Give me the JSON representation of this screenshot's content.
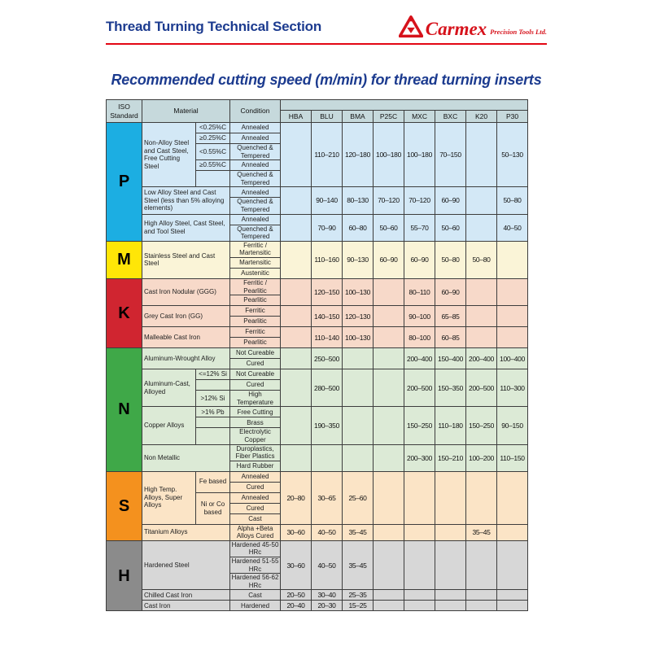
{
  "header": {
    "title": "Thread Turning Technical Section",
    "brand": "Carmex",
    "brand_suffix": "Precision Tools Ltd.",
    "logo_icon": "carmex-triangle-logo"
  },
  "doc_title": "Recommended cutting speed (m/min) for thread turning inserts",
  "colors": {
    "navy": "#1c3b8f",
    "red": "#e30613",
    "table_border": "#3d3d3d",
    "table_header_bg": "#c6d9dc"
  },
  "table": {
    "corner_headers": {
      "iso": "ISO Standard",
      "material": "Material",
      "condition": "Condition"
    },
    "grades": [
      "HBA",
      "BLU",
      "BMA",
      "P25C",
      "MXC",
      "BXC",
      "K20",
      "P30"
    ],
    "sections": [
      {
        "iso": "P",
        "label_bg": "#1caee2",
        "row_bg": "#d3e8f6",
        "materials": [
          {
            "name": "Non-Alloy Steel and Cast Steel, Free Cutting Steel",
            "specs": [
              {
                "text": "<0.25%C",
                "rows": 1
              },
              {
                "text": "≥0.25%C",
                "rows": 1
              },
              {
                "text": "<0.55%C",
                "rows": 1
              },
              {
                "text": "≥0.55%C",
                "rows": 1
              },
              {
                "text": "",
                "rows": 1
              }
            ],
            "conditions": [
              "Annealed",
              "Annealed",
              "Quenched & Tempered",
              "Annealed",
              "Quenched & Tempered"
            ],
            "values": [
              "",
              "110–210",
              "120–180",
              "100–180",
              "100–180",
              "70–150",
              "",
              "50–130"
            ]
          },
          {
            "name": "Low Alloy Steel and Cast Steel (less than 5% alloying elements)",
            "conditions": [
              "Annealed",
              "Quenched & Tempered"
            ],
            "values": [
              "",
              "90–140",
              "80–130",
              "70–120",
              "70–120",
              "60–90",
              "",
              "50–80"
            ]
          },
          {
            "name": "High Alloy Steel, Cast Steel, and Tool Steel",
            "conditions": [
              "Annealed",
              "Quenched & Tempered"
            ],
            "values": [
              "",
              "70–90",
              "60–80",
              "50–60",
              "55–70",
              "50–60",
              "",
              "40–50"
            ]
          }
        ]
      },
      {
        "iso": "M",
        "label_bg": "#ffe607",
        "row_bg": "#faf4d7",
        "materials": [
          {
            "name": "Stainless Steel and Cast Steel",
            "conditions": [
              "Ferritic / Martensitic",
              "Martensitic",
              "Austenitic"
            ],
            "values": [
              "",
              "110–160",
              "90–130",
              "60–90",
              "60–90",
              "50–80",
              "50–80",
              ""
            ]
          }
        ]
      },
      {
        "iso": "K",
        "label_bg": "#d02530",
        "row_bg": "#f7d9c9",
        "materials": [
          {
            "name": "Cast Iron Nodular (GGG)",
            "conditions": [
              "Ferritic / Pearlitic",
              "Pearlitic"
            ],
            "values": [
              "",
              "120–150",
              "100–130",
              "",
              "80–110",
              "60–90",
              "",
              ""
            ]
          },
          {
            "name": "Grey Cast Iron (GG)",
            "conditions": [
              "Ferritic",
              "Pearlitic"
            ],
            "values": [
              "",
              "140–150",
              "120–130",
              "",
              "90–100",
              "65–85",
              "",
              ""
            ]
          },
          {
            "name": "Malleable Cast Iron",
            "conditions": [
              "Ferritic",
              "Pearlitic"
            ],
            "values": [
              "",
              "110–140",
              "100–130",
              "",
              "80–100",
              "60–85",
              "",
              ""
            ]
          }
        ]
      },
      {
        "iso": "N",
        "label_bg": "#3fa848",
        "row_bg": "#dcead6",
        "materials": [
          {
            "name": "Aluminum-Wrought Alloy",
            "conditions": [
              "Not Cureable",
              "Cured"
            ],
            "values": [
              "",
              "250–500",
              "",
              "",
              "200–400",
              "150–400",
              "200–400",
              "100–400"
            ]
          },
          {
            "name": "Aluminum-Cast, Alloyed",
            "specs": [
              {
                "text": "<=12% Si",
                "rows": 1
              },
              {
                "text": "",
                "rows": 1
              },
              {
                "text": ">12% Si",
                "rows": 1
              }
            ],
            "conditions": [
              "Not Cureable",
              "Cured",
              "High Temperature"
            ],
            "values": [
              "",
              "280–500",
              "",
              "",
              "200–500",
              "150–350",
              "200–500",
              "110–300"
            ]
          },
          {
            "name": "Copper Alloys",
            "specs": [
              {
                "text": ">1% Pb",
                "rows": 1
              },
              {
                "text": "",
                "rows": 1
              },
              {
                "text": "",
                "rows": 1
              }
            ],
            "conditions": [
              "Free Cutting",
              "Brass",
              "Electrolytic Copper"
            ],
            "values": [
              "",
              "190–350",
              "",
              "",
              "150–250",
              "110–180",
              "150–250",
              "90–150"
            ]
          },
          {
            "name": "Non Metallic",
            "conditions": [
              "Duroplastics, Fiber Plastics",
              "Hard Rubber"
            ],
            "values": [
              "",
              "",
              "",
              "",
              "200–300",
              "150–210",
              "100–200",
              "110–150"
            ]
          }
        ]
      },
      {
        "iso": "S",
        "label_bg": "#f4911e",
        "row_bg": "#fbe4c6",
        "materials": [
          {
            "name": "High Temp. Alloys, Super Alloys",
            "specs": [
              {
                "text": "Fe based",
                "rows": 2
              },
              {
                "text": "Ni or Co based",
                "rows": 3
              }
            ],
            "conditions": [
              "Annealed",
              "Cured",
              "Annealed",
              "Cured",
              "Cast"
            ],
            "values": [
              "20–80",
              "30–65",
              "25–60",
              "",
              "",
              "",
              "",
              ""
            ]
          },
          {
            "name": "Titanium Alloys",
            "conditions": [
              "Alpha +Beta Alloys Cured"
            ],
            "values": [
              "30–60",
              "40–50",
              "35–45",
              "",
              "",
              "",
              "35–45",
              ""
            ]
          }
        ]
      },
      {
        "iso": "H",
        "label_bg": "#8b8b8b",
        "row_bg": "#d7d7d7",
        "materials": [
          {
            "name": "Hardened Steel",
            "conditions": [
              "Hardened 45-50 HRc",
              "Hardened 51-55 HRc",
              "Hardened 56-62 HRc"
            ],
            "values": [
              "30–60",
              "40–50",
              "35–45",
              "",
              "",
              "",
              "",
              ""
            ]
          },
          {
            "name": "Chilled Cast Iron",
            "conditions": [
              "Cast"
            ],
            "values": [
              "20–50",
              "30–40",
              "25–35",
              "",
              "",
              "",
              "",
              ""
            ]
          },
          {
            "name": "Cast Iron",
            "conditions": [
              "Hardened"
            ],
            "values": [
              "20–40",
              "20–30",
              "15–25",
              "",
              "",
              "",
              "",
              ""
            ]
          }
        ]
      }
    ]
  }
}
